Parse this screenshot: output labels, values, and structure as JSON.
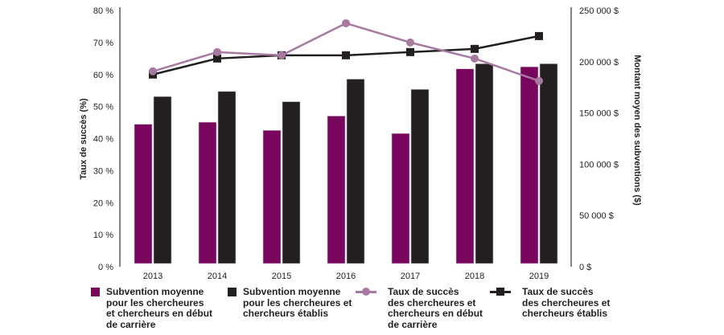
{
  "colors": {
    "early_bar": "#78065c",
    "established_bar": "#231f20",
    "early_line": "#a778a0",
    "established_line": "#231f20",
    "axis": "#58595b"
  },
  "chart_data": {
    "type": "bar",
    "title": "",
    "categories": [
      "2013",
      "2014",
      "2015",
      "2016",
      "2017",
      "2018",
      "2019"
    ],
    "xlabel": "",
    "ylabel": "Taux de succès (%)",
    "y2label": "Montant moyen des subventions ($)",
    "ylim": [
      0,
      80
    ],
    "y2lim": [
      0,
      250000
    ],
    "yticks": [
      "0 %",
      "10 %",
      "20 %",
      "30 %",
      "40 %",
      "50 %",
      "60 %",
      "70 %",
      "80 %"
    ],
    "y2ticks": [
      "0 $",
      "50 000 $",
      "100 000 $",
      "150 000 $",
      "200 000 $",
      "250 000 $"
    ],
    "grid": false,
    "legend_position": "bottom",
    "series": [
      {
        "name": "Subvention moyenne pour les chercheures et chercheurs en début de carrière",
        "kind": "bar",
        "axis": "right",
        "values": [
          139000,
          141000,
          133000,
          147000,
          130000,
          193000,
          195000
        ]
      },
      {
        "name": "Subvention moyenne pour les chercheures et chercheurs établis",
        "kind": "bar",
        "axis": "right",
        "values": [
          166000,
          171000,
          161000,
          183000,
          173000,
          198000,
          198000
        ]
      },
      {
        "name": "Taux de succès des chercheures et chercheurs en début de carrière",
        "kind": "line",
        "marker": "circle",
        "axis": "left",
        "values": [
          61,
          67,
          66,
          76,
          70,
          65,
          58
        ]
      },
      {
        "name": "Taux de succès des chercheures et chercheurs établis",
        "kind": "line",
        "marker": "square",
        "axis": "left",
        "values": [
          60,
          65,
          66,
          66,
          67,
          68,
          72
        ]
      }
    ]
  },
  "legend": [
    {
      "label": "Subvention moyenne\npour les chercheures\net chercheurs en début\nde carrière",
      "symbol": "box-early"
    },
    {
      "label": "Subvention moyenne\npour les chercheures et\nchercheurs établis",
      "symbol": "box-established"
    },
    {
      "label": "Taux de succès\ndes chercheures et\nchercheurs en début\nde carrière",
      "symbol": "line-circle-early"
    },
    {
      "label": "Taux de succès\ndes chercheures et\nchercheurs établis",
      "symbol": "line-square-established"
    }
  ]
}
